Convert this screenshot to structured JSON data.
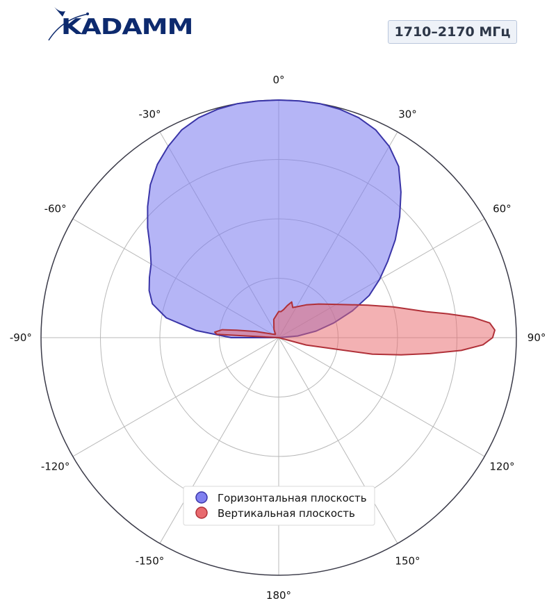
{
  "logo": {
    "text": "KADAMM"
  },
  "frequency_badge": "1710–2170 МГц",
  "colors": {
    "horizontal_fill": "#8080f0",
    "horizontal_edge": "#3a35a8",
    "vertical_fill": "#e86a6e",
    "vertical_edge": "#b03038",
    "grid": "#b8b8b8",
    "outer_ring": "#3a3a48",
    "logo": "#0d2a6e"
  },
  "chart_data": {
    "type": "polar",
    "theta_zero": "top",
    "theta_direction": "clockwise",
    "grid": true,
    "legend_position": "bottom-center",
    "radial_ticks_labeled": false,
    "r_range": [
      0,
      1
    ],
    "angle_tick_labels": [
      "0°",
      "30°",
      "60°",
      "90°",
      "120°",
      "150°",
      "180°",
      "-150°",
      "-120°",
      "-90°",
      "-60°",
      "-30°"
    ],
    "angle_ticks_deg": [
      0,
      30,
      60,
      90,
      120,
      150,
      180,
      210,
      240,
      270,
      300,
      330
    ],
    "series": [
      {
        "name": "Горизонтальная плоскость",
        "color": "horizontal",
        "theta_deg": [
          -90,
          -85,
          -80,
          -75,
          -70,
          -65,
          -60,
          -55,
          -50,
          -45,
          -40,
          -35,
          -30,
          -25,
          -20,
          -15,
          -10,
          -5,
          0,
          5,
          10,
          15,
          20,
          25,
          30,
          35,
          40,
          45,
          50,
          55,
          60,
          65,
          70,
          75,
          80,
          85,
          90
        ],
        "r": [
          0.2,
          0.35,
          0.48,
          0.55,
          0.58,
          0.6,
          0.62,
          0.66,
          0.72,
          0.78,
          0.84,
          0.89,
          0.93,
          0.965,
          0.985,
          0.995,
          1.0,
          1.0,
          1.0,
          1.0,
          1.0,
          0.995,
          0.985,
          0.965,
          0.93,
          0.88,
          0.8,
          0.72,
          0.64,
          0.56,
          0.49,
          0.42,
          0.33,
          0.24,
          0.16,
          0.08,
          0.0
        ]
      },
      {
        "name": "Вертикальная плоскость",
        "color": "vertical",
        "theta_deg": [
          -87,
          -85,
          -82,
          -80,
          -75,
          -60,
          -45,
          -30,
          -15,
          0,
          5,
          10,
          15,
          20,
          25,
          30,
          40,
          50,
          60,
          70,
          75,
          80,
          82,
          84,
          86,
          88,
          90,
          92,
          94,
          96,
          98,
          100,
          105
        ],
        "r": [
          0.26,
          0.27,
          0.24,
          0.18,
          0.1,
          0.03,
          0.02,
          0.04,
          0.08,
          0.11,
          0.11,
          0.12,
          0.14,
          0.16,
          0.14,
          0.15,
          0.18,
          0.22,
          0.28,
          0.4,
          0.5,
          0.63,
          0.72,
          0.82,
          0.89,
          0.91,
          0.9,
          0.86,
          0.77,
          0.64,
          0.52,
          0.4,
          0.12
        ]
      }
    ]
  }
}
